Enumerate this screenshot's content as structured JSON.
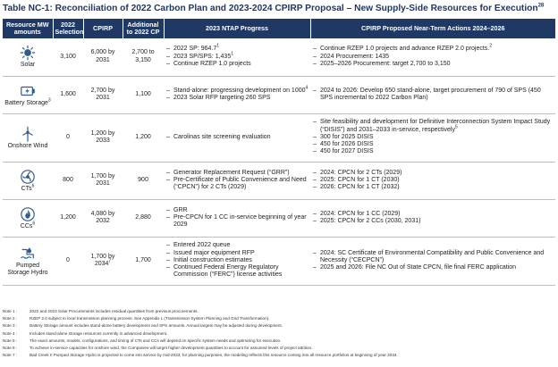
{
  "title": "Table NC-1: Reconciliation of 2022 Carbon Plan and 2023-2024 CPIRP Proposal – New Supply-Side Resources for Execution",
  "title_sup": "28",
  "headers": {
    "resource": "Resource MW amounts",
    "selection": "2022 Selection",
    "cpirp": "CPIRP",
    "additional": "Additional to 2022 CP",
    "ntap": "2023 NTAP Progress",
    "actions": "CPIRP Proposed Near-Term Actions 2024–2026"
  },
  "rows": [
    {
      "resource": "Solar",
      "resource_sup": "",
      "icon": "sun-icon",
      "selection": "3,100",
      "cpirp": "6,000 by 2031",
      "cpirp_sup": "",
      "additional": "2,700 to 3,150",
      "ntap": [
        {
          "text": "2022 SP: 964.7",
          "sup": "1"
        },
        {
          "text": "2023 SP/SPS: 1,435",
          "sup": "1"
        },
        {
          "text": "Continue RZEP 1.0 projects",
          "sup": ""
        }
      ],
      "actions": [
        {
          "text": "Continue RZEP 1.0 projects and advance RZEP 2.0 projects.",
          "sup": "2"
        },
        {
          "text": "2024 Procurement: 1435",
          "sup": ""
        },
        {
          "text": "2025–2026 Procurement: target 2,700 to 3,150",
          "sup": ""
        }
      ]
    },
    {
      "resource": "Battery Storage",
      "resource_sup": "3",
      "icon": "battery-icon",
      "selection": "1,600",
      "cpirp": "2,700 by 2031",
      "cpirp_sup": "",
      "additional": "1,100",
      "ntap": [
        {
          "text": "Stand-alone: progressing development on 1000",
          "sup": "4"
        },
        {
          "text": "2023 Solar RFP targeting 260 SPS",
          "sup": ""
        }
      ],
      "actions": [
        {
          "text": "2024 to 2026: Develop 650 stand-alone, target procurement of 790 of SPS (450 SPS incremental to 2022 Carbon Plan)",
          "sup": ""
        }
      ]
    },
    {
      "resource": "Onshore Wind",
      "resource_sup": "",
      "icon": "wind-turbine-icon",
      "selection": "0",
      "cpirp": "1,200 by 2033",
      "cpirp_sup": "",
      "additional": "1,200",
      "ntap": [
        {
          "text": "Carolinas site screening evaluation",
          "sup": ""
        }
      ],
      "actions": [
        {
          "text": "Site feasibility and development for Definitive Interconnection System Impact Study (“DISIS”) and 2031–2033 in-service, respectively",
          "sup": "5"
        },
        {
          "text": "300 for 2025 DISIS",
          "sup": ""
        },
        {
          "text": "450 for 2026 DISIS",
          "sup": ""
        },
        {
          "text": "450 for 2027 DISIS",
          "sup": ""
        }
      ]
    },
    {
      "resource": "CTs",
      "resource_sup": "6",
      "icon": "turbine-fan-icon",
      "selection": "800",
      "cpirp": "1,700 by 2031",
      "cpirp_sup": "",
      "additional": "900",
      "ntap": [
        {
          "text": "Generator Replacement Request (“GRR”)",
          "sup": ""
        },
        {
          "text": "Pre-Certificate of Public Convenience and Need (“CPCN”) for 2 CTs (2029)",
          "sup": ""
        }
      ],
      "actions": [
        {
          "text": "2024: CPCN for 2 CTs (2029)",
          "sup": ""
        },
        {
          "text": "2025: CPCN for 1 CT (2030)",
          "sup": ""
        },
        {
          "text": "2026: CPCN for 1 CT (2032)",
          "sup": ""
        }
      ]
    },
    {
      "resource": "CCs",
      "resource_sup": "6",
      "icon": "gas-flame-icon",
      "selection": "1,200",
      "cpirp": "4,080 by 2032",
      "cpirp_sup": "",
      "additional": "2,880",
      "ntap": [
        {
          "text": "GRR",
          "sup": ""
        },
        {
          "text": "Pre-CPCN for 1 CC in-service beginning of year 2029",
          "sup": ""
        }
      ],
      "actions": [
        {
          "text": "2024: CPCN for 1 CC (2029)",
          "sup": ""
        },
        {
          "text": "2025: CPCN for 2 CCs (2030, 2031)",
          "sup": ""
        }
      ]
    },
    {
      "resource": "Pumped Storage Hydro",
      "resource_sup": "",
      "icon": "hydro-icon",
      "selection": "0",
      "cpirp": "1,700 by 2034",
      "cpirp_sup": "7",
      "additional": "1,700",
      "ntap": [
        {
          "text": "Entered 2022 queue",
          "sup": ""
        },
        {
          "text": "Issued major equipment RFP",
          "sup": ""
        },
        {
          "text": "Initial construction estimates",
          "sup": ""
        },
        {
          "text": "Continued Federal Energy Regulatory Commission (“FERC”) license activities",
          "sup": ""
        }
      ],
      "actions": [
        {
          "text": "2024: SC Certificate of Environmental Compatibility and Public Convenience and Necessity (“CECPCN”)",
          "sup": ""
        },
        {
          "text": "2025 and 2026: File NC Out of State CPCN, file final FERC application",
          "sup": ""
        }
      ]
    }
  ],
  "notes": [
    {
      "label": "Note 1 :",
      "text": "2022 and 2023 Solar Procurements includes residual quantities from previous procurements."
    },
    {
      "label": "Note 2 :",
      "text": "RZEP 2.0 subject to local transmission planning process. See Appendix L (Transmission System Planning and Grid Transformation)."
    },
    {
      "label": "Note 3 :",
      "text": "Battery Storage amount includes stand-alone battery development and SPS amounts. Annual targets may be adjusted during development."
    },
    {
      "label": "Note 4 :",
      "text": "Includes stand-alone storage resources currently in advanced development."
    },
    {
      "label": "Note 5 :",
      "text": "The exact amounts, models, configurations, and timing of CTs and CCs will depend on specific system needs and optimizing for execution."
    },
    {
      "label": "Note 6 :",
      "text": "To achieve in-service capacities for onshore wind, the Companies will target higher development quantities to account for assumed levels of project attrition."
    },
    {
      "label": "Note 7 :",
      "text": "Bad Creek II Pumped Storage Hydro is projected to come into service by mid-2033; for planning purposes, the modeling reflects this resource coming into all resource portfolios at beginning of year 2034."
    }
  ],
  "colors": {
    "header_bg": "#1f3864",
    "icon": "#2e5b8c",
    "title": "#1f3864"
  }
}
